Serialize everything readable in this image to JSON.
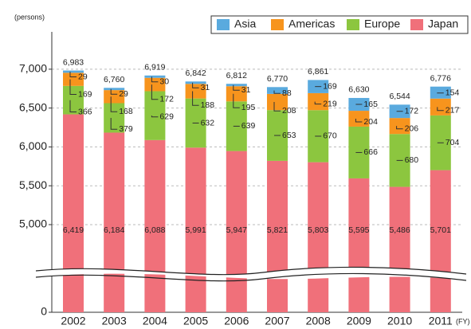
{
  "chart_data": {
    "type": "stacked_bar",
    "y_axis_label": "(persons)",
    "x_axis_label": "(FY)",
    "categories": [
      "2002",
      "2003",
      "2004",
      "2005",
      "2006",
      "2007",
      "2008",
      "2009",
      "2010",
      "2011"
    ],
    "series": [
      {
        "name": "Japan",
        "color": "#f0707a",
        "values": [
          6419,
          6184,
          6088,
          5991,
          5947,
          5821,
          5803,
          5595,
          5486,
          5701
        ],
        "value_labels": [
          "6,419",
          "6,184",
          "6,088",
          "5,991",
          "5,947",
          "5,821",
          "5,803",
          "5,595",
          "5,486",
          "5,701"
        ]
      },
      {
        "name": "Europe",
        "color": "#8cc63f",
        "values": [
          366,
          379,
          629,
          632,
          639,
          653,
          670,
          666,
          680,
          704
        ]
      },
      {
        "name": "Americas",
        "color": "#f7941d",
        "values": [
          169,
          168,
          172,
          188,
          195,
          208,
          219,
          204,
          206,
          217
        ]
      },
      {
        "name": "Asia",
        "color": "#5aaade",
        "values": [
          29,
          29,
          30,
          31,
          31,
          88,
          169,
          165,
          172,
          154
        ]
      }
    ],
    "totals": [
      6983,
      6760,
      6919,
      6842,
      6812,
      6770,
      6861,
      6630,
      6544,
      6776
    ],
    "total_labels": [
      "6,983",
      "6,760",
      "6,919",
      "6,842",
      "6,812",
      "6,770",
      "6,861",
      "6,630",
      "6,544",
      "6,776"
    ],
    "ylim": [
      0,
      7300
    ],
    "y_break": [
      400,
      4600
    ],
    "yticks": [
      0,
      {
        "value": 5000,
        "label": "5,000"
      },
      {
        "value": 5500,
        "label": "5,500"
      },
      {
        "value": 6000,
        "label": "6,000"
      },
      {
        "value": 6500,
        "label": "6,500"
      },
      {
        "value": 7000,
        "label": "7,000"
      }
    ],
    "grid": true,
    "legend": "top-right"
  }
}
